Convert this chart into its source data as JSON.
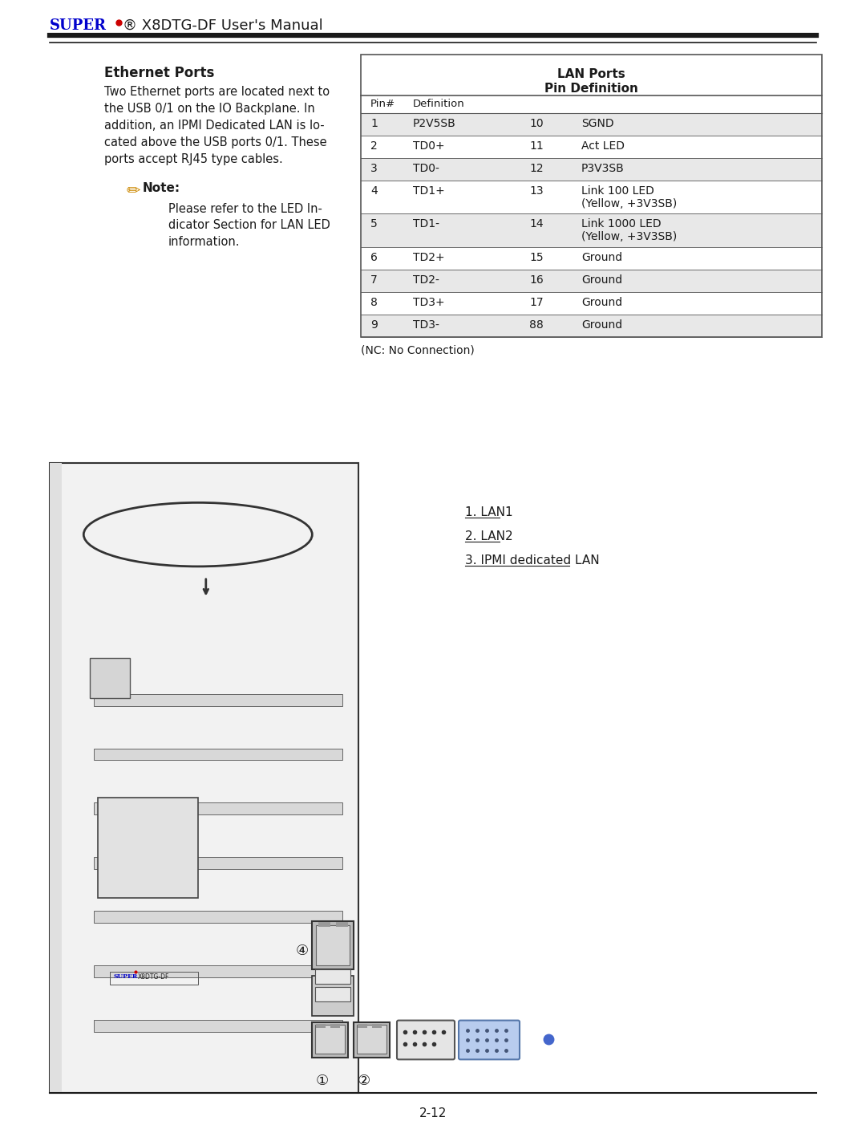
{
  "page_title_super": "SUPER",
  "page_title_rest": "® X8DTG-DF User's Manual",
  "section_title": "Ethernet Ports",
  "body_text": "Two Ethernet ports are located next to\nthe USB 0/1 on the IO Backplane. In\naddition, an IPMI Dedicated LAN is lo-\ncated above the USB ports 0/1. These\nports accept RJ45 type cables.",
  "note_label": "Note",
  "note_text": "Please refer to the LED In-\ndicator Section for LAN LED\ninformation.",
  "nc_note": "(NC: No Connection)",
  "table_title_line1": "LAN Ports",
  "table_title_line2": "Pin Definition",
  "table_rows": [
    [
      "1",
      "P2V5SB",
      "10",
      "SGND"
    ],
    [
      "2",
      "TD0+",
      "11",
      "Act LED"
    ],
    [
      "3",
      "TD0-",
      "12",
      "P3V3SB"
    ],
    [
      "4",
      "TD1+",
      "13",
      "Link 100 LED\n(Yellow, +3V3SB)"
    ],
    [
      "5",
      "TD1-",
      "14",
      "Link 1000 LED\n(Yellow, +3V3SB)"
    ],
    [
      "6",
      "TD2+",
      "15",
      "Ground"
    ],
    [
      "7",
      "TD2-",
      "16",
      "Ground"
    ],
    [
      "8",
      "TD3+",
      "17",
      "Ground"
    ],
    [
      "9",
      "TD3-",
      "88",
      "Ground"
    ]
  ],
  "row_shaded_indices": [
    0,
    2,
    4,
    6,
    8
  ],
  "shaded_color": "#e8e8e8",
  "legend_items": [
    "1. LAN1",
    "2. LAN2",
    "3. IPMI dedicated LAN"
  ],
  "page_number": "2-12",
  "super_color": "#0000cc",
  "dot_color": "#cc0000",
  "background": "#ffffff",
  "table_border_color": "#555555",
  "text_color": "#1a1a1a",
  "double_rule_color": "#1a1a1a"
}
